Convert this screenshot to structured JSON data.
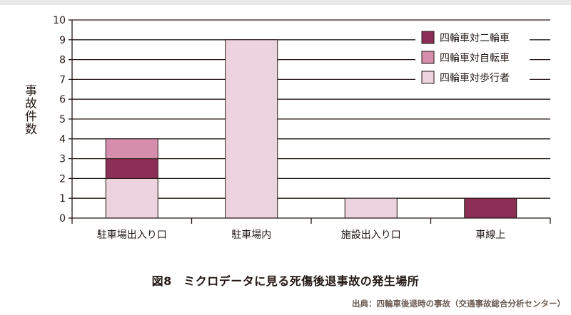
{
  "chart_data": {
    "type": "bar",
    "stacked": true,
    "categories": [
      "駐車場出入り口",
      "駐車場内",
      "施設出入り口",
      "車線上"
    ],
    "series": [
      {
        "name": "四輪車対歩行者",
        "color": "#ecd3dd",
        "values": [
          2,
          9,
          1,
          0
        ]
      },
      {
        "name": "四輪車対二輪車",
        "color": "#8b2f57",
        "values": [
          1,
          0,
          0,
          1
        ]
      },
      {
        "name": "四輪車対自転車",
        "color": "#d58fad",
        "values": [
          1,
          0,
          0,
          0
        ]
      }
    ],
    "legend_order": [
      "四輪車対二輪車",
      "四輪車対自転車",
      "四輪車対歩行者"
    ],
    "ylabel": "事故件数",
    "ylim": [
      0,
      10
    ],
    "yticks": [
      0,
      1,
      2,
      3,
      4,
      5,
      6,
      7,
      8,
      9,
      10
    ],
    "grid": true,
    "legend_position": "top-right"
  },
  "caption": "図8　ミクロデータに見る死傷後退事故の発生場所",
  "source": "出典：四輪車後退時の事故（交通事故総合分析センター）"
}
